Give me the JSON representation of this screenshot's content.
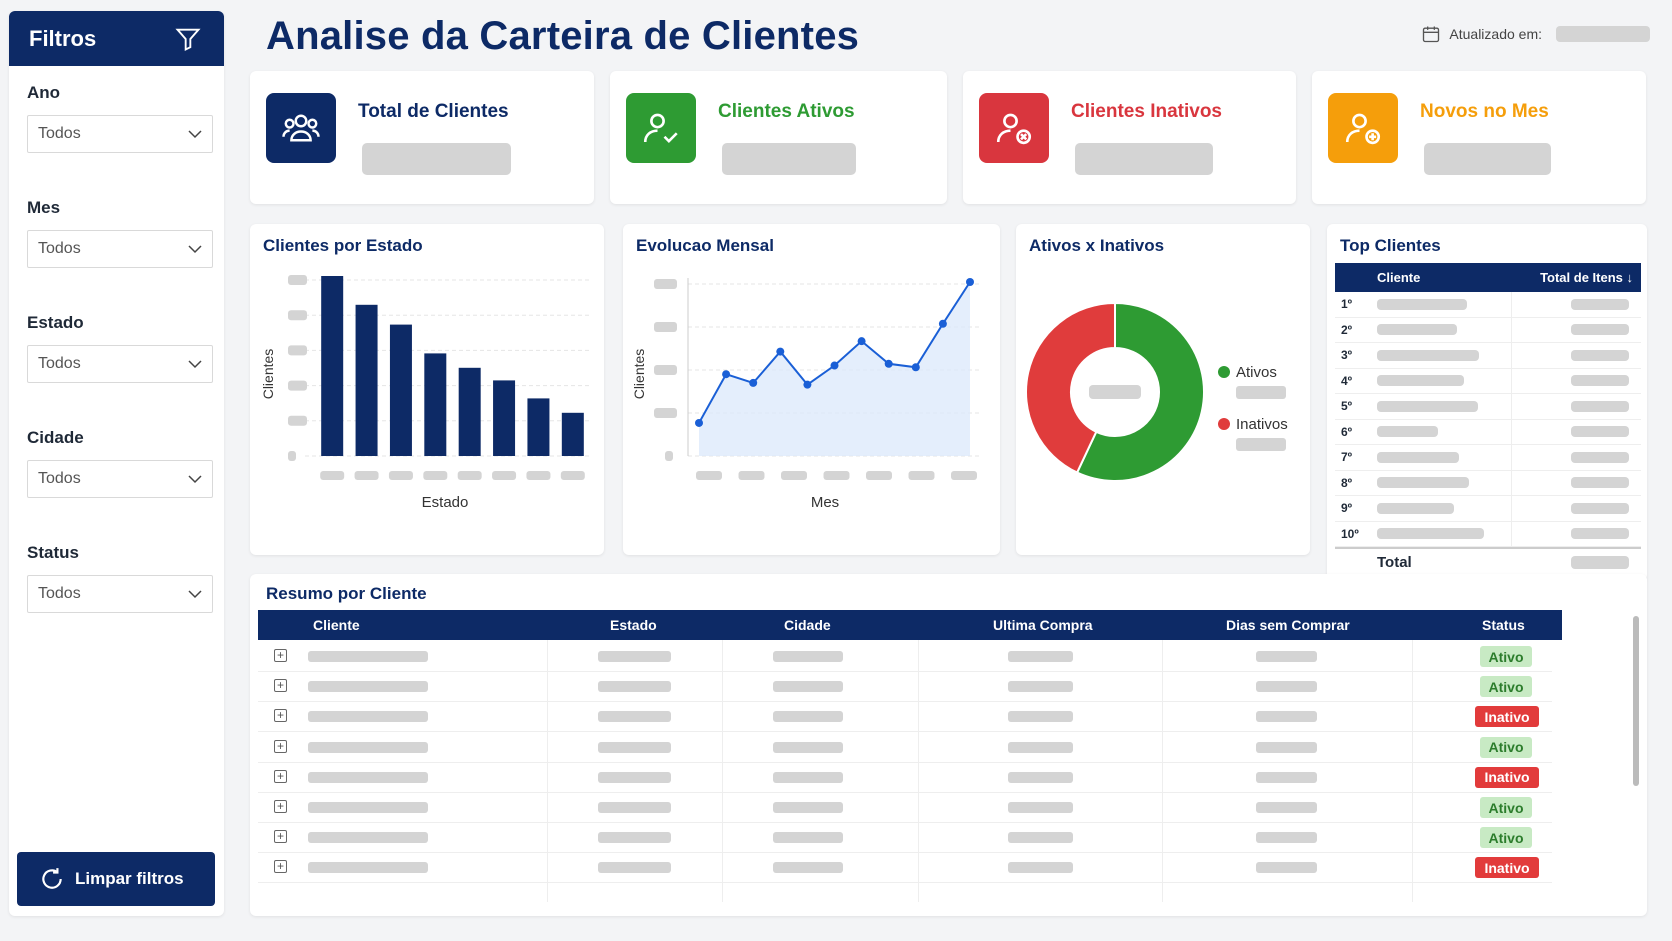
{
  "sidebar": {
    "title": "Filtros",
    "filters": [
      {
        "label": "Ano",
        "value": "Todos"
      },
      {
        "label": "Mes",
        "value": "Todos"
      },
      {
        "label": "Estado",
        "value": "Todos"
      },
      {
        "label": "Cidade",
        "value": "Todos"
      },
      {
        "label": "Status",
        "value": "Todos"
      }
    ],
    "clear_label": "Limpar filtros"
  },
  "header": {
    "title": "Analise da Carteira de Clientes",
    "updated_label": "Atualizado em:"
  },
  "kpis": [
    {
      "title": "Total de Clientes",
      "color": "#0d2a66",
      "icon": "users-icon"
    },
    {
      "title": "Clientes Ativos",
      "color": "#2e9b33",
      "icon": "user-check-icon"
    },
    {
      "title": "Clientes Inativos",
      "color": "#d9363e",
      "icon": "user-x-icon"
    },
    {
      "title": "Novos no Mes",
      "color": "#f59e0b",
      "icon": "user-plus-icon"
    }
  ],
  "charts": {
    "estado": {
      "title": "Clientes por Estado",
      "xlabel": "Estado",
      "ylabel": "Clientes"
    },
    "mensal": {
      "title": "Evolucao Mensal",
      "xlabel": "Mes",
      "ylabel": "Clientes"
    },
    "ativos": {
      "title": "Ativos x Inativos",
      "legend": [
        "Ativos",
        "Inativos"
      ]
    }
  },
  "chart_data": [
    {
      "type": "bar",
      "title": "Clientes por Estado",
      "xlabel": "Estado",
      "ylabel": "Clientes",
      "values": [
        100,
        84,
        73,
        57,
        49,
        42,
        32,
        24
      ],
      "color": "#0d2a66"
    },
    {
      "type": "area",
      "title": "Evolucao Mensal",
      "xlabel": "Mes",
      "ylabel": "Clientes",
      "values": [
        19,
        47,
        42,
        60,
        41,
        52,
        66,
        53,
        51,
        76,
        100
      ],
      "color": "#1a5fd6"
    },
    {
      "type": "pie",
      "title": "Ativos x Inativos",
      "legend": [
        "Ativos",
        "Inativos"
      ],
      "values": [
        57,
        43
      ],
      "colors": [
        "#2e9b33",
        "#e03c3c"
      ]
    }
  ],
  "top_clientes": {
    "title": "Top Clientes",
    "col_cliente": "Cliente",
    "col_total": "Total de Itens ↓",
    "ranks": [
      "1º",
      "2º",
      "3º",
      "4º",
      "5º",
      "6º",
      "7º",
      "8º",
      "9º",
      "10º"
    ],
    "total_label": "Total"
  },
  "resumo": {
    "title": "Resumo por Cliente",
    "columns": [
      "Cliente",
      "Estado",
      "Cidade",
      "Ultima Compra",
      "Dias sem Comprar",
      "Status"
    ],
    "statuses": [
      "Ativo",
      "Ativo",
      "Inativo",
      "Ativo",
      "Inativo",
      "Ativo",
      "Ativo",
      "Inativo"
    ]
  }
}
